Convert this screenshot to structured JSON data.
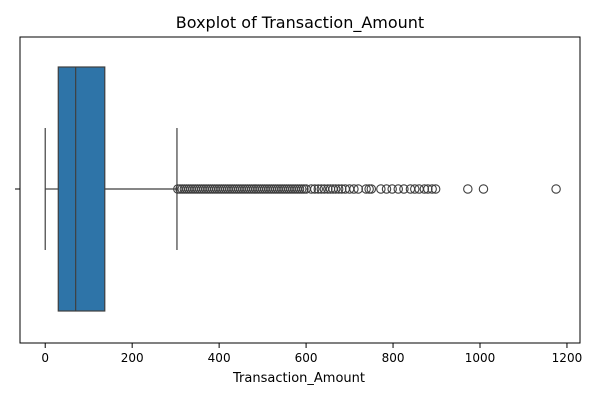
{
  "chart_data": {
    "type": "box",
    "title": "Boxplot of Transaction_Amount",
    "xlabel": "Transaction_Amount",
    "ylabel": "",
    "xlim": [
      -58,
      1230
    ],
    "x_ticks": [
      0,
      200,
      400,
      600,
      800,
      1000,
      1200
    ],
    "x_tick_labels": [
      "0",
      "200",
      "400",
      "600",
      "800",
      "1000",
      "1200"
    ],
    "box_color": "#2e74a8",
    "series": [
      {
        "whisker_low": 0,
        "q1": 30,
        "median": 70,
        "q3": 137,
        "whisker_high": 303,
        "outliers": [
          305,
          310,
          315,
          320,
          325,
          330,
          335,
          340,
          345,
          350,
          355,
          360,
          365,
          370,
          375,
          380,
          385,
          390,
          395,
          400,
          405,
          410,
          415,
          420,
          425,
          430,
          435,
          440,
          445,
          450,
          455,
          460,
          465,
          470,
          475,
          480,
          485,
          490,
          495,
          500,
          505,
          510,
          515,
          520,
          525,
          530,
          535,
          540,
          545,
          550,
          555,
          560,
          565,
          570,
          575,
          580,
          585,
          590,
          595,
          600,
          612,
          620,
          628,
          635,
          642,
          650,
          656,
          662,
          668,
          675,
          682,
          690,
          700,
          710,
          720,
          738,
          745,
          750,
          772,
          785,
          798,
          812,
          825,
          840,
          850,
          860,
          872,
          880,
          890,
          898,
          972,
          1008,
          1175
        ]
      }
    ]
  }
}
